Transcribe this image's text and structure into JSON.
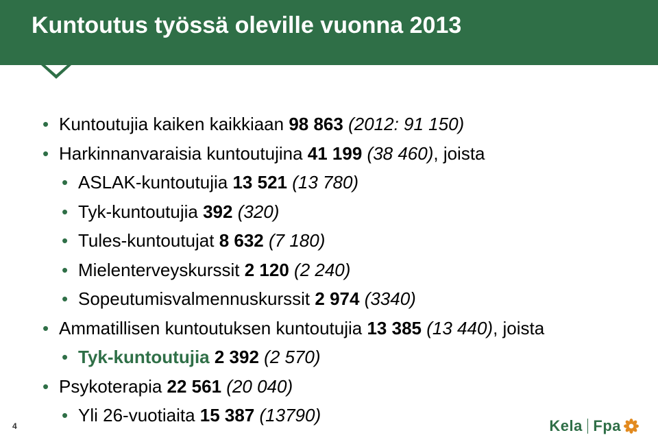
{
  "header": {
    "title": "Kuntoutus työssä oleville vuonna 2013",
    "title_fontsize": 34,
    "band_color": "#2f6f47",
    "band_height": 95,
    "text_color": "#ffffff",
    "notch_color": "#2f6f47",
    "notch_border_top": 20
  },
  "body": {
    "fontsize": 26,
    "line_height": 1.25,
    "text_color": "#000000",
    "bullet_color": "#2f6f47",
    "items": [
      {
        "text_pre": "Kuntoutujia kaiken kaikkiaan ",
        "bold": "98 863 ",
        "italic": "(2012: 91 150)"
      },
      {
        "text_pre": "Harkinnanvaraisia kuntoutujina ",
        "bold": "41 199 ",
        "italic": "(38 460)",
        "text_post": ", joista",
        "children": [
          {
            "text_pre": "ASLAK-kuntoutujia ",
            "bold": "13 521 ",
            "italic": "(13 780)"
          },
          {
            "text_pre": "Tyk-kuntoutujia ",
            "bold": "392 ",
            "italic": "(320)"
          },
          {
            "text_pre": "Tules-kuntoutujat ",
            "bold": "8 632 ",
            "italic": "(7 180)"
          },
          {
            "text_pre": "Mielenterveyskurssit ",
            "bold": "2 120 ",
            "italic": "(2 240)"
          },
          {
            "text_pre": "Sopeutumisvalmennuskurssit ",
            "bold": "2 974 ",
            "italic": "(3340)"
          }
        ]
      },
      {
        "text_pre": "Ammatillisen kuntoutuksen kuntoutujia ",
        "bold": "13 385 ",
        "italic": "(13 440)",
        "text_post": ", joista",
        "children": [
          {
            "text_pre": "Tyk-kuntoutujia ",
            "bold": "2 392 ",
            "italic": "(2 570)",
            "pre_bold_color": "#2f6f47",
            "pre_bold_weight": "700"
          }
        ]
      },
      {
        "text_pre": "Psykoterapia ",
        "bold": "22 561 ",
        "italic": "(20 040)",
        "children": [
          {
            "text_pre": "Yli 26-vuotiaita  ",
            "bold": "15 387 ",
            "italic": "(13790)"
          }
        ]
      }
    ]
  },
  "footer": {
    "page_number": "4",
    "logo_left": "Kela",
    "logo_right": "Fpa",
    "logo_color": "#2f6f47",
    "rosette_outer": "#e28a1f",
    "rosette_inner": "#ffffff"
  }
}
